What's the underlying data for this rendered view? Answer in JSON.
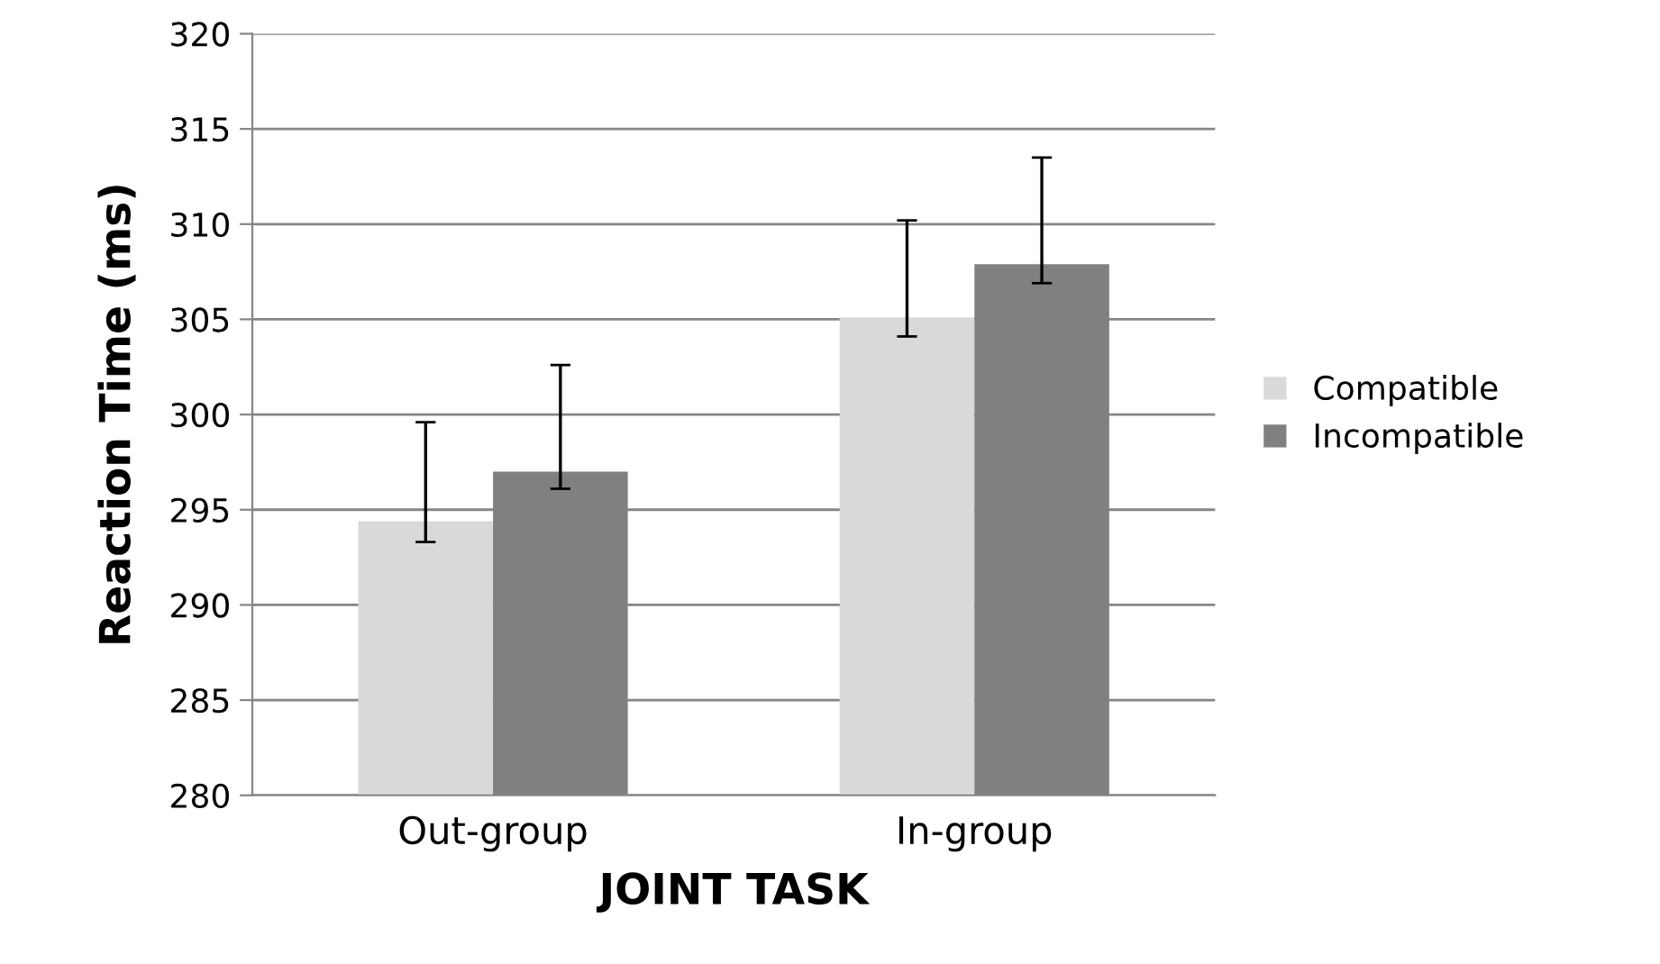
{
  "chart_data": {
    "type": "bar",
    "xlabel": "JOINT TASK",
    "ylabel": "Reaction Time (ms)",
    "categories": [
      "Out-group",
      "In-group"
    ],
    "series": [
      {
        "name": "Compatible",
        "color": "#d9d9d9",
        "values": [
          294.4,
          305.1
        ],
        "errors": [
          [
            293.3,
            299.6
          ],
          [
            304.1,
            310.2
          ]
        ]
      },
      {
        "name": "Incompatible",
        "color": "#808080",
        "values": [
          297.0,
          307.9
        ],
        "errors": [
          [
            296.1,
            302.6
          ],
          [
            306.9,
            313.5
          ]
        ]
      }
    ],
    "ylim": [
      280,
      320
    ],
    "yticks": [
      280,
      285,
      290,
      295,
      300,
      305,
      310,
      315,
      320
    ],
    "grid": "y",
    "legend": "right"
  }
}
